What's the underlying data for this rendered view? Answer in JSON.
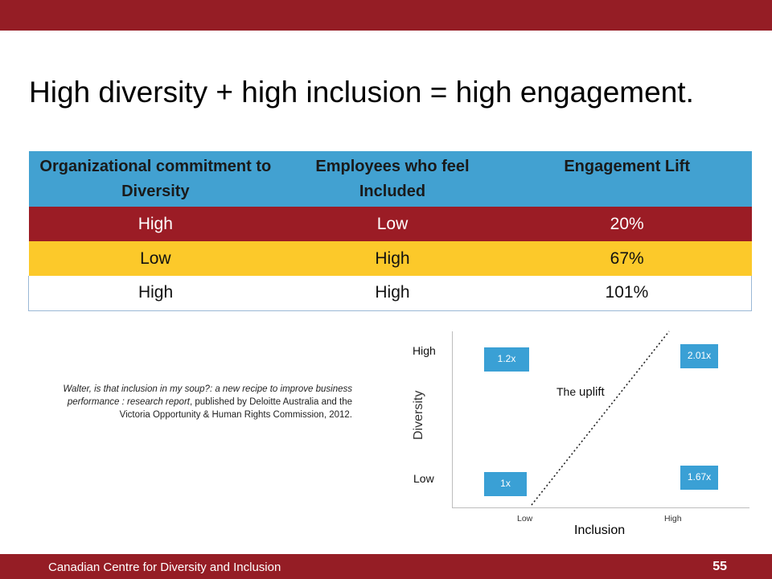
{
  "title": "High diversity + high inclusion = high engagement.",
  "table": {
    "headers": [
      "Organizational commitment to Diversity",
      "Employees who feel Included",
      "Engagement Lift"
    ],
    "rows": [
      [
        "High",
        "Low",
        "20%"
      ],
      [
        "Low",
        "High",
        "67%"
      ],
      [
        "High",
        "High",
        "101%"
      ]
    ]
  },
  "citation": {
    "title_italic": "Walter, is that inclusion in my soup?: a new recipe to improve business performance : research report",
    "rest": ", published by Deloitte Australia and the Victoria Opportunity & Human Rights Commission, 2012."
  },
  "chart": {
    "y_axis_title": "Diversity",
    "x_axis_title": "Inclusion",
    "y_ticks": [
      "High",
      "Low"
    ],
    "x_ticks": [
      "Low",
      "High"
    ],
    "boxes": {
      "low_low": "1x",
      "high_low": "1.2x",
      "low_high": "1.67x",
      "high_high": "2.01x"
    },
    "uplift_prefix": "The",
    "uplift_word": "uplift",
    "colors": {
      "box": "#3aa0d5"
    }
  },
  "footer": {
    "organization": "Canadian Centre for Diversity and Inclusion",
    "page_number": "55"
  },
  "colors": {
    "brand_red": "#951d25",
    "header_blue": "#42a1d1",
    "row_red": "#9b1c25",
    "row_yellow": "#fcc92a"
  }
}
